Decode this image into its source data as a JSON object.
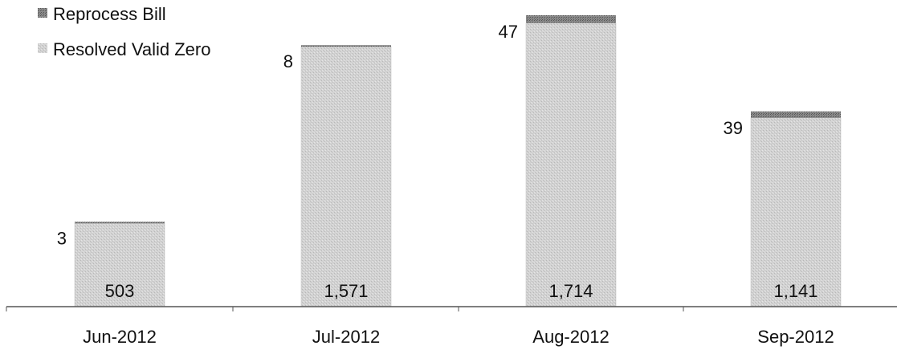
{
  "chart_data": {
    "type": "bar",
    "stacked": true,
    "categories": [
      "Jun-2012",
      "Jul-2012",
      "Aug-2012",
      "Sep-2012"
    ],
    "series": [
      {
        "name": "Resolved Valid Zero",
        "values": [
          503,
          1571,
          1714,
          1141
        ],
        "labels": [
          "503",
          "1,571",
          "1,714",
          "1,141"
        ],
        "color": "#cbcbcb"
      },
      {
        "name": "Reprocess Bill",
        "values": [
          3,
          8,
          47,
          39
        ],
        "labels": [
          "3",
          "8",
          "47",
          "39"
        ],
        "color": "#7a7a7a"
      }
    ],
    "legend": {
      "position": "top-left"
    },
    "grid": false
  }
}
